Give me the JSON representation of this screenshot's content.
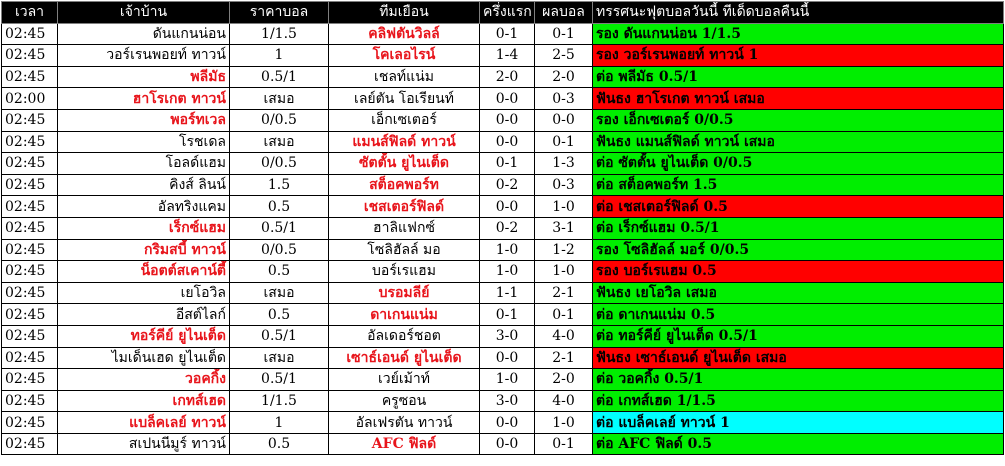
{
  "headers": {
    "time": "เวลา",
    "home": "เจ้าบ้าน",
    "odds": "ราคาบอล",
    "away": "ทีมเยือน",
    "half": "ครึ่งแรก",
    "result": "ผลบอล",
    "tip": "ทรรศนะฟุตบอลวันนี้ ทีเด็ดบอลคืนนี้"
  },
  "colors": {
    "favorite_text": "#e8141b",
    "tip_win": "#00ee00",
    "tip_loss": "#ff0000",
    "tip_draw": "#00ffff",
    "header_bg": "#000000"
  },
  "rows": [
    {
      "time": "02:45",
      "home": "ดันแกนน่อน",
      "home_fav": false,
      "odds": "1/1.5",
      "away": "คลิฟตันวิลล์",
      "away_fav": true,
      "half": "0-1",
      "result": "0-1",
      "tip": "รอง ดันแกนน่อน 1/1.5",
      "tip_status": "win"
    },
    {
      "time": "02:45",
      "home": "วอร์เรนพอยท์ ทาวน์",
      "home_fav": false,
      "odds": "1",
      "away": "โคเลอไรน์",
      "away_fav": true,
      "half": "1-4",
      "result": "2-5",
      "tip": "รอง วอร์เรนพอยท์ ทาวน์ 1",
      "tip_status": "loss"
    },
    {
      "time": "02:45",
      "home": "พลีมัธ",
      "home_fav": true,
      "odds": "0.5/1",
      "away": "เชลท์แน่ม",
      "away_fav": false,
      "half": "2-0",
      "result": "2-0",
      "tip": "ต่อ พลีมัธ 0.5/1",
      "tip_status": "win"
    },
    {
      "time": "02:00",
      "home": "ฮาโรเกต ทาวน์",
      "home_fav": true,
      "odds": "เสมอ",
      "away": "เลย์ตัน โอเรียนท์",
      "away_fav": false,
      "half": "0-0",
      "result": "0-3",
      "tip": "ฟันธง ฮาโรเกต ทาวน์ เสมอ",
      "tip_status": "loss"
    },
    {
      "time": "02:45",
      "home": "พอร์ทเวล",
      "home_fav": true,
      "odds": "0/0.5",
      "away": "เอ็กเซเตอร์",
      "away_fav": false,
      "half": "0-0",
      "result": "0-0",
      "tip": "รอง เอ็กเซเตอร์ 0/0.5",
      "tip_status": "win"
    },
    {
      "time": "02:45",
      "home": "โรชเดล",
      "home_fav": false,
      "odds": "เสมอ",
      "away": "แมนส์ฟิลด์ ทาวน์",
      "away_fav": true,
      "half": "0-0",
      "result": "0-1",
      "tip": "ฟันธง แมนส์ฟิลด์ ทาวน์ เสมอ",
      "tip_status": "win"
    },
    {
      "time": "02:45",
      "home": "โอลด์แฮม",
      "home_fav": false,
      "odds": "0/0.5",
      "away": "ซัตตั้น ยูไนเต็ด",
      "away_fav": true,
      "half": "0-1",
      "result": "1-3",
      "tip": "ต่อ ซัตตั้น ยูไนเต็ด 0/0.5",
      "tip_status": "win"
    },
    {
      "time": "02:45",
      "home": "คิงส์ ลินน์",
      "home_fav": false,
      "odds": "1.5",
      "away": "สต็อคพอร์ท",
      "away_fav": true,
      "half": "0-2",
      "result": "0-3",
      "tip": "ต่อ สต็อคพอร์ท 1.5",
      "tip_status": "win"
    },
    {
      "time": "02:45",
      "home": "อัลทริงแคม",
      "home_fav": false,
      "odds": "0.5",
      "away": "เชสเตอร์ฟิลด์",
      "away_fav": true,
      "half": "0-0",
      "result": "1-0",
      "tip": "ต่อ เชสเตอร์ฟิลด์ 0.5",
      "tip_status": "loss"
    },
    {
      "time": "02:45",
      "home": "เร็กซ์แฮม",
      "home_fav": true,
      "odds": "0.5/1",
      "away": "ฮาลิแฟกซ์",
      "away_fav": false,
      "half": "0-2",
      "result": "3-1",
      "tip": "ต่อ เร็กซ์แฮม 0.5/1",
      "tip_status": "win"
    },
    {
      "time": "02:45",
      "home": "กริมสบี้ ทาวน์",
      "home_fav": true,
      "odds": "0/0.5",
      "away": "โซลิฮัลล์ มอ",
      "away_fav": false,
      "half": "1-0",
      "result": "1-2",
      "tip": "รอง โซลิฮัลล์ มอร์ 0/0.5",
      "tip_status": "win"
    },
    {
      "time": "02:45",
      "home": "น็อตต์สเคาน์ตี้",
      "home_fav": true,
      "odds": "0.5",
      "away": "บอร์เรแฮม",
      "away_fav": false,
      "half": "1-0",
      "result": "1-0",
      "tip": "รอง บอร์เรแฮม 0.5",
      "tip_status": "loss"
    },
    {
      "time": "02:45",
      "home": "เยโอวิล",
      "home_fav": false,
      "odds": "เสมอ",
      "away": "บรอมลีย์",
      "away_fav": true,
      "half": "1-1",
      "result": "2-1",
      "tip": "ฟันธง เยโอวิล เสมอ",
      "tip_status": "win"
    },
    {
      "time": "02:45",
      "home": "อีสต์ไลก์",
      "home_fav": false,
      "odds": "0.5",
      "away": "ดาเกนแน่ม",
      "away_fav": true,
      "half": "0-1",
      "result": "0-1",
      "tip": "ต่อ ดาเกนแน่ม 0.5",
      "tip_status": "win"
    },
    {
      "time": "02:45",
      "home": "ทอร์คีย์ ยูไนเต็ด",
      "home_fav": true,
      "odds": "0.5/1",
      "away": "อัลเดอร์ชอต",
      "away_fav": false,
      "half": "3-0",
      "result": "4-0",
      "tip": "ต่อ ทอร์คีย์ ยูไนเต็ด 0.5/1",
      "tip_status": "win"
    },
    {
      "time": "02:45",
      "home": "ไมเด็นเฮด ยูไนเต็ด",
      "home_fav": false,
      "odds": "เสมอ",
      "away": "เซาธ์เอนด์ ยูไนเต็ด",
      "away_fav": true,
      "half": "0-0",
      "result": "2-1",
      "tip": "ฟันธง เซาธ์เอนด์ ยูไนเต็ด เสมอ",
      "tip_status": "loss"
    },
    {
      "time": "02:45",
      "home": "วอคกิ้ง",
      "home_fav": true,
      "odds": "0.5/1",
      "away": "เวย์เม้าท์",
      "away_fav": false,
      "half": "1-0",
      "result": "2-0",
      "tip": "ต่อ วอคกิ้ง 0.5/1",
      "tip_status": "win"
    },
    {
      "time": "02:45",
      "home": "เกทส์เฮด",
      "home_fav": true,
      "odds": "1/1.5",
      "away": "ครูซอน",
      "away_fav": false,
      "half": "3-0",
      "result": "4-0",
      "tip": "ต่อ เกทส์เฮด 1/1.5",
      "tip_status": "win"
    },
    {
      "time": "02:45",
      "home": "แบล็คเลย์ ทาวน์",
      "home_fav": true,
      "odds": "1",
      "away": "อัลเฟรตัน ทาวน์",
      "away_fav": false,
      "half": "0-0",
      "result": "1-0",
      "tip": "ต่อ แบล็คเลย์ ทาวน์ 1",
      "tip_status": "draw"
    },
    {
      "time": "02:45",
      "home": "สเปนนีมูร์ ทาวน์",
      "home_fav": false,
      "odds": "0.5",
      "away": "AFC ฟิลด์",
      "away_fav": true,
      "half": "0-0",
      "result": "0-1",
      "tip": "ต่อ AFC ฟิลด์ 0.5",
      "tip_status": "win"
    }
  ]
}
